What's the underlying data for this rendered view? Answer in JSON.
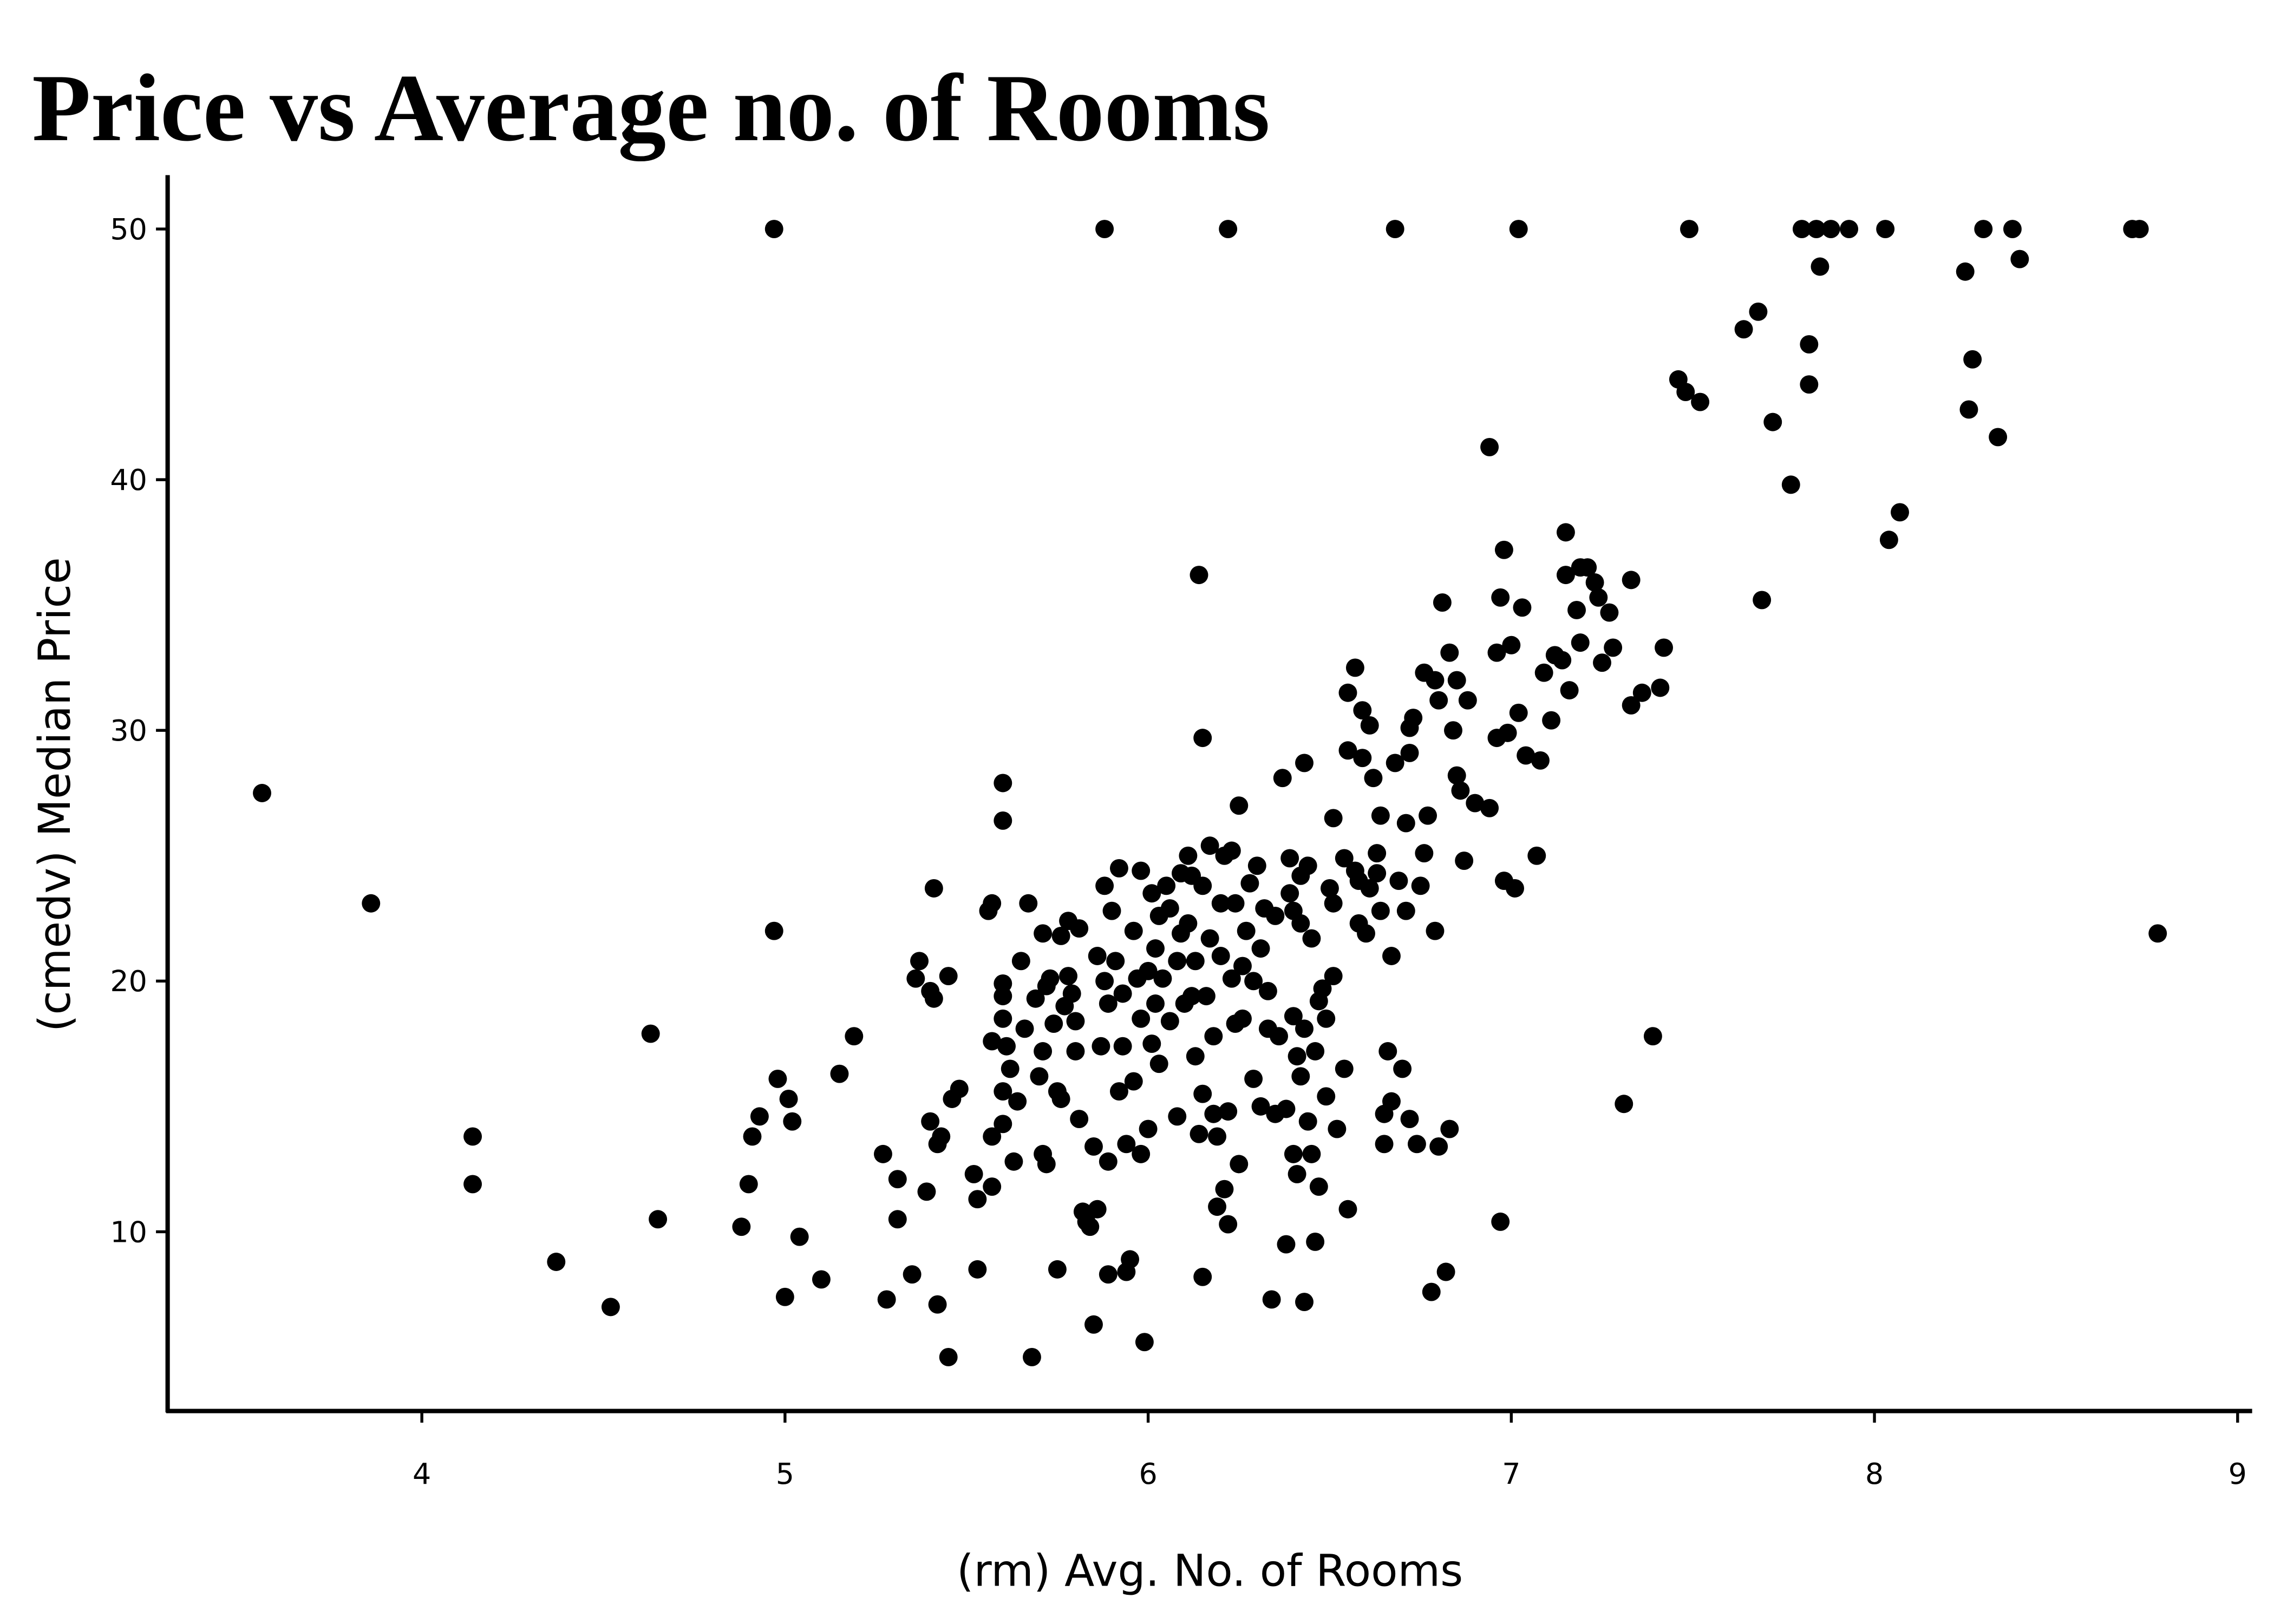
{
  "chart_data": {
    "type": "scatter",
    "title": "Price vs Average no. of Rooms",
    "xlabel": "(rm) Avg. No. of Rooms",
    "ylabel": "(cmedv) Median Price",
    "color": "#000000",
    "xlim": [
      3.3,
      9.04
    ],
    "ylim": [
      2.85,
      52.15
    ],
    "xticks": [
      4,
      5,
      6,
      7,
      8,
      9
    ],
    "yticks": [
      10,
      20,
      30,
      40,
      50
    ],
    "grid": false,
    "x": [
      4.97,
      5.88,
      6.22,
      6.68,
      7.02,
      7.49,
      7.8,
      7.84,
      7.88,
      7.93,
      8.03,
      8.3,
      8.38,
      8.71,
      8.73,
      3.56,
      3.86,
      4.63,
      4.14,
      4.14,
      4.37,
      4.52,
      4.65,
      4.88,
      4.9,
      4.91,
      4.93,
      4.97,
      4.98,
      5.01,
      5.02,
      5.0,
      5.04,
      5.1,
      5.15,
      5.19,
      5.27,
      5.28,
      5.31,
      5.31,
      5.35,
      5.36,
      5.37,
      5.39,
      5.4,
      5.4,
      5.41,
      5.41,
      5.42,
      5.42,
      5.43,
      5.45,
      5.45,
      5.46,
      5.48,
      5.52,
      5.53,
      5.53,
      5.56,
      5.57,
      5.57,
      5.57,
      5.57,
      5.6,
      5.6,
      5.6,
      5.6,
      5.6,
      5.6,
      5.6,
      5.61,
      5.62,
      5.63,
      5.64,
      5.65,
      5.66,
      5.67,
      5.68,
      5.69,
      5.7,
      5.71,
      5.71,
      5.71,
      5.72,
      5.72,
      5.73,
      5.74,
      5.75,
      5.75,
      5.76,
      5.76,
      5.77,
      5.78,
      5.78,
      5.79,
      5.8,
      5.8,
      5.81,
      5.81,
      5.82,
      5.83,
      5.84,
      5.85,
      5.85,
      5.86,
      5.86,
      5.87,
      5.88,
      5.88,
      5.89,
      5.89,
      5.89,
      5.9,
      5.91,
      5.92,
      5.92,
      5.93,
      5.93,
      5.94,
      5.94,
      5.95,
      5.96,
      5.96,
      5.97,
      5.98,
      5.98,
      5.98,
      5.99,
      6.0,
      6.0,
      6.01,
      6.01,
      6.02,
      6.02,
      6.03,
      6.03,
      6.04,
      6.05,
      6.06,
      6.06,
      6.08,
      6.08,
      6.09,
      6.09,
      6.1,
      6.11,
      6.11,
      6.12,
      6.12,
      6.13,
      6.13,
      6.14,
      6.14,
      6.15,
      6.15,
      6.15,
      6.15,
      6.16,
      6.17,
      6.17,
      6.18,
      6.18,
      6.19,
      6.19,
      6.2,
      6.2,
      6.21,
      6.21,
      6.22,
      6.22,
      6.23,
      6.23,
      6.24,
      6.24,
      6.25,
      6.25,
      6.26,
      6.26,
      6.27,
      6.28,
      6.29,
      6.29,
      6.3,
      6.31,
      6.31,
      6.32,
      6.33,
      6.33,
      6.34,
      6.35,
      6.35,
      6.36,
      6.37,
      6.38,
      6.38,
      6.39,
      6.39,
      6.4,
      6.4,
      6.4,
      6.41,
      6.41,
      6.42,
      6.42,
      6.42,
      6.43,
      6.43,
      6.43,
      6.44,
      6.44,
      6.45,
      6.45,
      6.46,
      6.46,
      6.47,
      6.47,
      6.48,
      6.49,
      6.49,
      6.5,
      6.51,
      6.51,
      6.51,
      6.52,
      6.54,
      6.54,
      6.55,
      6.55,
      6.55,
      6.57,
      6.57,
      6.58,
      6.58,
      6.59,
      6.59,
      6.6,
      6.61,
      6.61,
      6.62,
      6.63,
      6.63,
      6.64,
      6.64,
      6.65,
      6.65,
      6.66,
      6.67,
      6.67,
      6.68,
      6.69,
      6.7,
      6.71,
      6.71,
      6.72,
      6.72,
      6.72,
      6.73,
      6.74,
      6.75,
      6.76,
      6.76,
      6.77,
      6.78,
      6.79,
      6.79,
      6.8,
      6.8,
      6.81,
      6.82,
      6.83,
      6.83,
      6.84,
      6.85,
      6.85,
      6.86,
      6.87,
      6.88,
      6.9,
      6.94,
      6.94,
      6.96,
      6.96,
      6.97,
      6.97,
      6.98,
      6.98,
      6.99,
      7.0,
      7.01,
      7.02,
      7.03,
      7.04,
      7.07,
      7.08,
      7.09,
      7.11,
      7.12,
      7.14,
      7.15,
      7.15,
      7.16,
      7.18,
      7.19,
      7.19,
      7.21,
      7.23,
      7.24,
      7.25,
      7.27,
      7.28,
      7.31,
      7.33,
      7.33,
      7.36,
      7.39,
      7.41,
      7.42,
      7.46,
      7.48,
      7.52,
      7.72,
      7.64,
      7.68,
      7.69,
      7.77,
      7.82,
      7.82,
      7.85,
      8.04,
      8.07,
      8.25,
      8.26,
      8.27,
      8.34,
      8.4,
      8.78
    ],
    "values": [
      50,
      50,
      50,
      50,
      50,
      50,
      50,
      50,
      50,
      50,
      50,
      50,
      50,
      50,
      50,
      27.5,
      23.1,
      17.9,
      13.8,
      11.9,
      8.8,
      7.0,
      10.5,
      10.2,
      11.9,
      13.8,
      14.6,
      22.0,
      16.1,
      15.3,
      14.4,
      7.4,
      9.8,
      8.1,
      16.3,
      17.8,
      13.1,
      7.3,
      12.1,
      10.5,
      8.3,
      20.1,
      20.8,
      11.6,
      14.4,
      19.6,
      19.3,
      23.7,
      7.1,
      13.5,
      13.8,
      20.2,
      5.0,
      15.3,
      15.7,
      12.3,
      8.5,
      11.3,
      22.8,
      23.1,
      13.8,
      17.6,
      11.8,
      19.9,
      27.9,
      26.4,
      18.5,
      19.4,
      15.6,
      14.3,
      17.4,
      16.5,
      12.8,
      15.2,
      20.8,
      18.1,
      23.1,
      5.0,
      19.3,
      16.2,
      17.2,
      13.1,
      21.9,
      12.7,
      19.8,
      20.1,
      18.3,
      8.5,
      15.6,
      15.3,
      21.8,
      19.0,
      22.4,
      20.2,
      19.5,
      18.4,
      17.2,
      22.1,
      14.5,
      10.8,
      10.4,
      10.2,
      13.4,
      6.3,
      10.9,
      21.0,
      17.4,
      23.8,
      20.0,
      12.8,
      19.1,
      8.3,
      22.8,
      20.8,
      15.6,
      24.5,
      17.4,
      19.5,
      13.5,
      8.4,
      8.9,
      22.0,
      16.0,
      20.1,
      24.4,
      13.1,
      18.5,
      5.6,
      20.4,
      14.1,
      23.5,
      17.5,
      21.3,
      19.1,
      16.7,
      22.6,
      20.1,
      23.8,
      18.4,
      22.9,
      14.6,
      20.8,
      21.9,
      24.3,
      19.1,
      25.0,
      22.3,
      24.2,
      19.4,
      17.0,
      20.8,
      36.2,
      13.9,
      15.5,
      23.8,
      29.7,
      8.2,
      19.4,
      21.7,
      25.4,
      14.7,
      17.8,
      11.0,
      13.8,
      23.1,
      21.0,
      25.0,
      11.7,
      14.8,
      10.3,
      20.1,
      25.2,
      18.3,
      23.1,
      27.0,
      12.7,
      18.5,
      20.6,
      22.0,
      23.9,
      20.0,
      16.1,
      24.6,
      15.0,
      21.3,
      22.9,
      19.6,
      18.1,
      7.3,
      14.7,
      22.6,
      17.8,
      28.1,
      9.5,
      14.9,
      24.9,
      23.5,
      13.1,
      18.6,
      22.8,
      12.3,
      17.0,
      24.2,
      16.2,
      22.3,
      18.1,
      28.7,
      7.2,
      14.4,
      24.6,
      13.1,
      21.7,
      17.2,
      9.6,
      11.8,
      19.2,
      19.7,
      15.4,
      18.5,
      23.7,
      26.5,
      20.2,
      23.1,
      14.1,
      16.5,
      24.9,
      10.9,
      29.2,
      31.5,
      32.5,
      24.4,
      22.3,
      24.0,
      30.8,
      28.9,
      21.9,
      30.2,
      23.7,
      28.1,
      25.1,
      24.3,
      26.6,
      22.8,
      13.5,
      14.7,
      17.2,
      15.2,
      21.0,
      28.7,
      24.0,
      16.5,
      26.3,
      22.8,
      29.1,
      30.1,
      14.5,
      30.5,
      13.5,
      23.8,
      32.3,
      25.1,
      26.6,
      7.6,
      32.0,
      22.0,
      13.4,
      31.2,
      35.1,
      8.4,
      33.1,
      14.1,
      30.0,
      28.2,
      32.0,
      27.6,
      24.8,
      31.2,
      27.1,
      26.9,
      41.3,
      33.1,
      29.7,
      10.4,
      35.3,
      24.0,
      37.2,
      29.9,
      33.4,
      23.7,
      30.7,
      34.9,
      29.0,
      25.0,
      28.8,
      32.3,
      30.4,
      33.0,
      32.8,
      36.2,
      37.9,
      31.6,
      34.8,
      36.5,
      33.5,
      36.5,
      35.9,
      35.3,
      32.7,
      34.7,
      33.3,
      15.1,
      31.0,
      36.0,
      31.5,
      17.8,
      31.7,
      33.3,
      44.0,
      43.5,
      43.1,
      42.3,
      46.0,
      46.7,
      35.2,
      39.8,
      45.4,
      43.8,
      48.5,
      37.6,
      38.7,
      48.3,
      42.8,
      44.8,
      41.7,
      48.8,
      21.9
    ]
  }
}
